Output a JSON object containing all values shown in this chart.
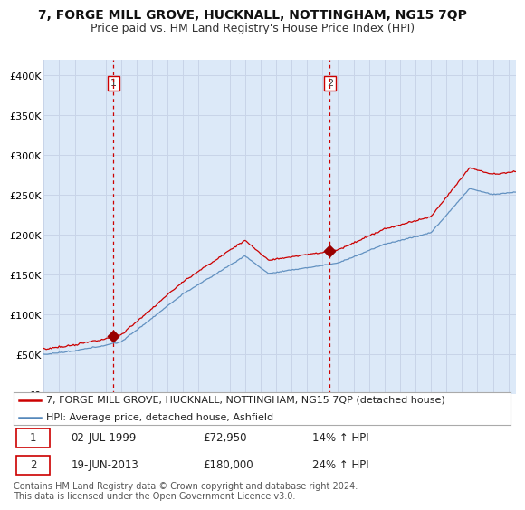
{
  "title": "7, FORGE MILL GROVE, HUCKNALL, NOTTINGHAM, NG15 7QP",
  "subtitle": "Price paid vs. HM Land Registry's House Price Index (HPI)",
  "ylim": [
    0,
    420000
  ],
  "yticks": [
    0,
    50000,
    100000,
    150000,
    200000,
    250000,
    300000,
    350000,
    400000
  ],
  "ytick_labels": [
    "£0",
    "£50K",
    "£100K",
    "£150K",
    "£200K",
    "£250K",
    "£300K",
    "£350K",
    "£400K"
  ],
  "sale1_date": 1999.5,
  "sale1_price": 72950,
  "sale1_label": "1",
  "sale2_date": 2013.47,
  "sale2_price": 180000,
  "sale2_label": "2",
  "red_line_color": "#cc0000",
  "blue_line_color": "#5588bb",
  "dot_color": "#990000",
  "vline_color": "#cc0000",
  "grid_color": "#c8d4e8",
  "chart_bg_color": "#dce9f8",
  "bg_color": "#ffffff",
  "legend1_text": "7, FORGE MILL GROVE, HUCKNALL, NOTTINGHAM, NG15 7QP (detached house)",
  "legend2_text": "HPI: Average price, detached house, Ashfield",
  "table_row1": [
    "1",
    "02-JUL-1999",
    "£72,950",
    "14% ↑ HPI"
  ],
  "table_row2": [
    "2",
    "19-JUN-2013",
    "£180,000",
    "24% ↑ HPI"
  ],
  "footer": "Contains HM Land Registry data © Crown copyright and database right 2024.\nThis data is licensed under the Open Government Licence v3.0.",
  "title_fontsize": 10,
  "subtitle_fontsize": 9,
  "tick_fontsize": 8,
  "legend_fontsize": 8,
  "table_fontsize": 8.5,
  "footer_fontsize": 7
}
